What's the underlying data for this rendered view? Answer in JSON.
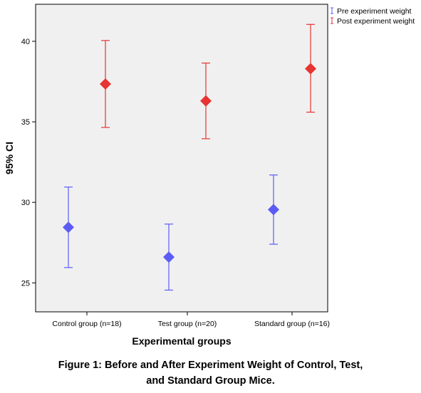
{
  "chart_data": {
    "type": "errorbar",
    "title": "",
    "xlabel": "Experimental groups",
    "ylabel": "95% CI",
    "ylim": [
      23.2,
      42.3
    ],
    "yticks": [
      25,
      30,
      35,
      40
    ],
    "categories": [
      "Control group (n=18)",
      "Test group (n=20)",
      "Standard group (n=16)"
    ],
    "legend_position": "top-right-outside",
    "series": [
      {
        "name": "Pre experiment weight",
        "color": "#5c5cf5",
        "marker": "diamond",
        "mean": [
          28.45,
          26.6,
          29.55
        ],
        "lower": [
          25.95,
          24.55,
          27.4
        ],
        "upper": [
          30.95,
          28.65,
          31.7
        ]
      },
      {
        "name": "Post experiment weight",
        "color": "#e83333",
        "marker": "diamond",
        "mean": [
          37.35,
          36.3,
          38.3
        ],
        "lower": [
          34.65,
          33.95,
          35.6
        ],
        "upper": [
          40.05,
          38.65,
          41.05
        ]
      }
    ]
  },
  "caption": {
    "line1": "Figure 1: Before and After Experiment Weight of Control, Test,",
    "line2": "and Standard Group Mice."
  }
}
